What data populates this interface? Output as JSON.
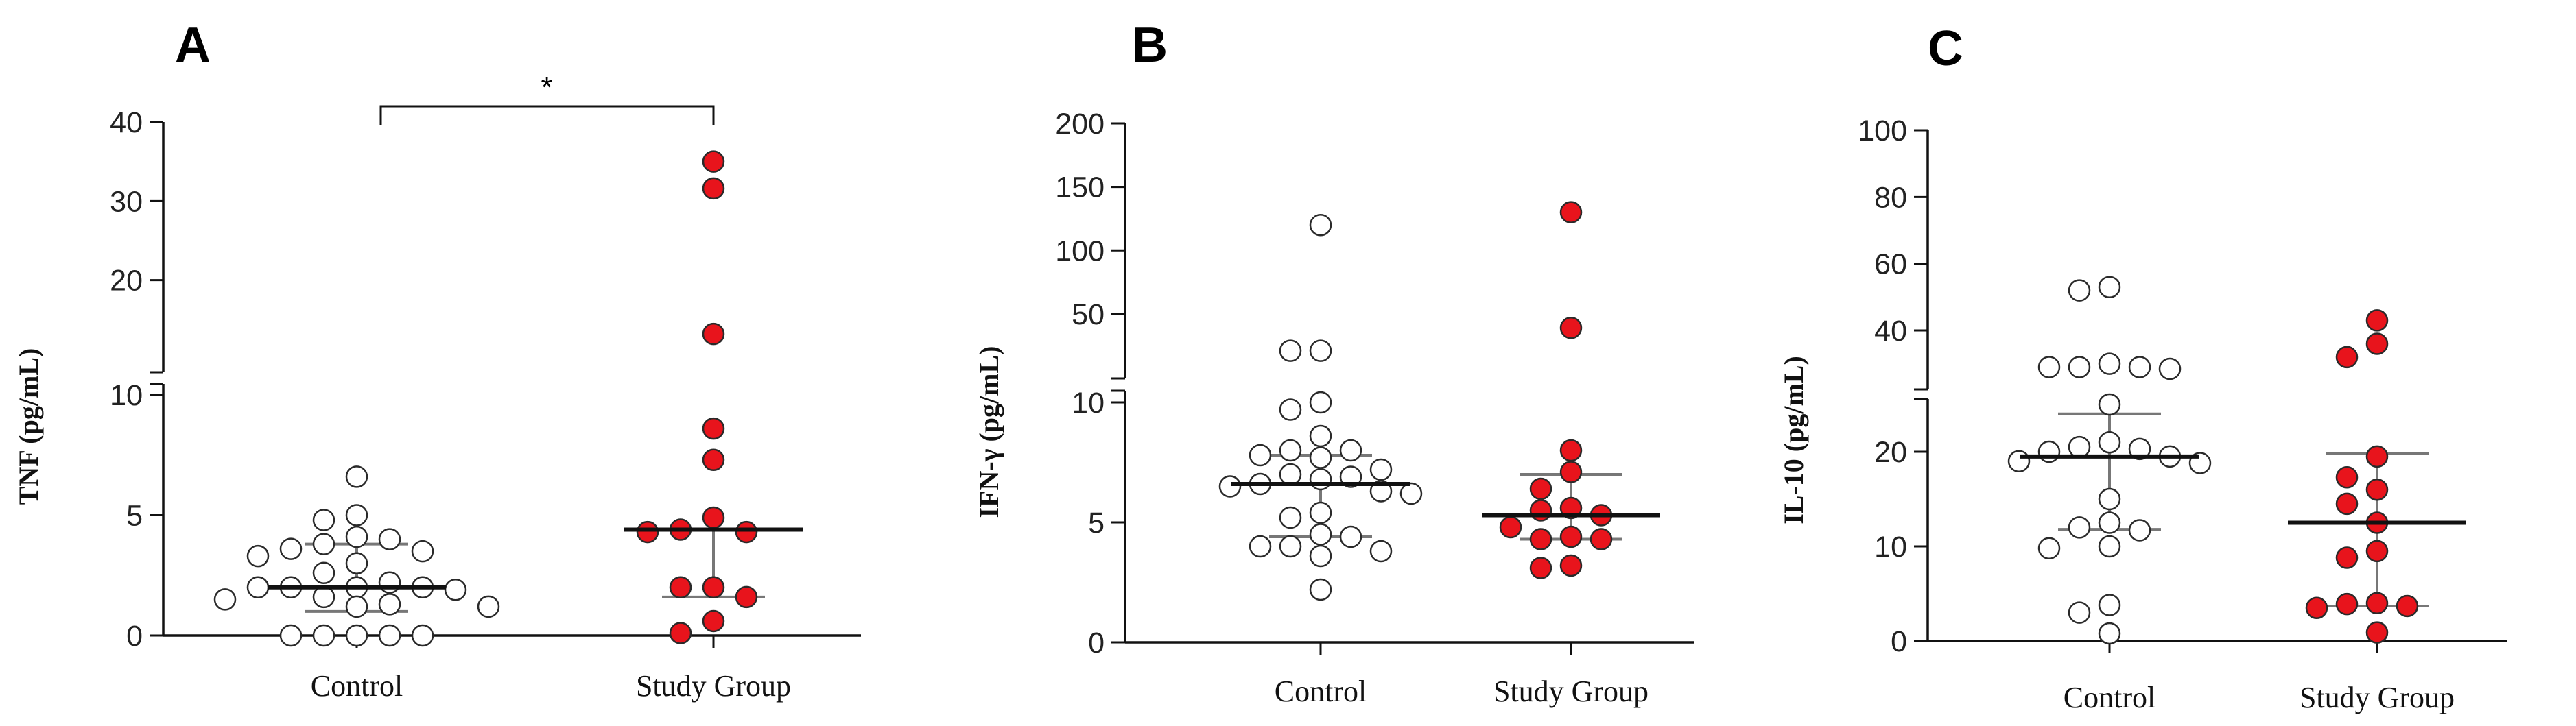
{
  "colors": {
    "control_fill": "#ffffff",
    "study_fill": "#e8141c",
    "marker_stroke": "#2a2a2a",
    "whisker": "#777777"
  },
  "chart_data": [
    {
      "type": "scatter",
      "panel": "A",
      "ylabel": "TNF (pg/mL)",
      "categories": [
        "Control",
        "Study Group"
      ],
      "y_axis_broken": true,
      "lower_segment": {
        "ylim": [
          0,
          10
        ],
        "ticks": [
          0,
          5,
          10
        ]
      },
      "upper_segment": {
        "ylim": [
          10,
          40
        ],
        "ticks": [
          10,
          20,
          30,
          40
        ]
      },
      "series": [
        {
          "name": "Control",
          "color": "#ffffff",
          "values": [
            6.6,
            5.0,
            4.8,
            4.1,
            4.0,
            3.8,
            3.6,
            3.5,
            3.3,
            3.0,
            2.6,
            2.2,
            2.0,
            2.0,
            2.0,
            2.0,
            1.9,
            1.6,
            1.5,
            1.3,
            1.2,
            1.2,
            0.0,
            0.0,
            0.0,
            0.0,
            0.0
          ],
          "median": 2.0,
          "iqr": [
            1.0,
            3.8
          ]
        },
        {
          "name": "Study Group",
          "color": "#e8141c",
          "values": [
            35.0,
            31.6,
            13.2,
            8.6,
            7.3,
            4.9,
            4.4,
            4.3,
            4.3,
            2.0,
            2.0,
            1.6,
            0.6,
            0.1
          ],
          "median": 4.4,
          "iqr": [
            1.6,
            4.4
          ]
        }
      ],
      "significance": {
        "label": "*",
        "between": [
          "Control",
          "Study Group"
        ]
      }
    },
    {
      "type": "scatter",
      "panel": "B",
      "ylabel": "IFN-γ (pg/mL)",
      "categories": [
        "Control",
        "Study Group"
      ],
      "y_axis_broken": true,
      "lower_segment": {
        "ylim": [
          0,
          10
        ],
        "ticks": [
          0,
          5,
          10
        ]
      },
      "upper_segment": {
        "ylim": [
          10,
          200
        ],
        "ticks": [
          50,
          100,
          150,
          200
        ]
      },
      "series": [
        {
          "name": "Control",
          "color": "#ffffff",
          "values": [
            120,
            21.0,
            21.0,
            10.0,
            9.7,
            8.6,
            8.0,
            8.0,
            7.8,
            7.7,
            7.2,
            7.0,
            6.9,
            6.8,
            6.6,
            6.5,
            6.3,
            6.2,
            5.4,
            5.2,
            4.5,
            4.4,
            4.0,
            4.0,
            3.8,
            3.6,
            2.2
          ],
          "median": 6.6,
          "iqr": [
            4.4,
            7.8
          ]
        },
        {
          "name": "Study Group",
          "color": "#e8141c",
          "values": [
            130,
            39.0,
            8.0,
            7.1,
            6.4,
            5.6,
            5.5,
            5.3,
            4.8,
            4.4,
            4.3,
            4.3,
            3.2,
            3.1
          ],
          "median": 5.3,
          "iqr": [
            4.3,
            7.0
          ]
        }
      ]
    },
    {
      "type": "scatter",
      "panel": "C",
      "ylabel": "IL-10 (pg/mL)",
      "categories": [
        "Control",
        "Study Group"
      ],
      "y_axis_broken": true,
      "lower_segment": {
        "ylim": [
          0,
          25
        ],
        "ticks": [
          0,
          10,
          20
        ]
      },
      "upper_segment": {
        "ylim": [
          25,
          100
        ],
        "ticks": [
          40,
          60,
          80,
          100
        ]
      },
      "series": [
        {
          "name": "Control",
          "color": "#ffffff",
          "values": [
            53.0,
            52.0,
            30.0,
            29.0,
            29.0,
            29.0,
            28.5,
            25.0,
            21.0,
            20.5,
            20.3,
            20.0,
            19.5,
            19.0,
            18.8,
            15.0,
            12.5,
            12.0,
            11.7,
            10.0,
            9.8,
            3.8,
            3.0,
            0.8
          ],
          "median": 19.5,
          "iqr": [
            11.8,
            24.0
          ]
        },
        {
          "name": "Study Group",
          "color": "#e8141c",
          "values": [
            43.0,
            36.0,
            32.0,
            19.5,
            17.3,
            16.0,
            14.5,
            12.5,
            9.5,
            8.8,
            4.0,
            3.9,
            3.7,
            3.5,
            0.9
          ],
          "median": 12.5,
          "iqr": [
            3.7,
            19.8
          ]
        }
      ]
    }
  ]
}
